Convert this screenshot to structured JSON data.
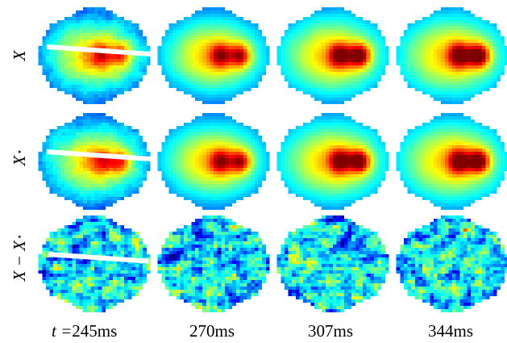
{
  "rows": [
    {
      "label": "X",
      "sup": ""
    },
    {
      "label": "X",
      "sup": "⋆"
    },
    {
      "label": "X − X",
      "sup": "⋆"
    }
  ],
  "columns": [
    {
      "prefix": "t =",
      "time": "245ms"
    },
    {
      "prefix": "",
      "time": "270ms"
    },
    {
      "prefix": "",
      "time": "307ms"
    },
    {
      "prefix": "",
      "time": "344ms"
    }
  ],
  "colormap": "jet"
}
